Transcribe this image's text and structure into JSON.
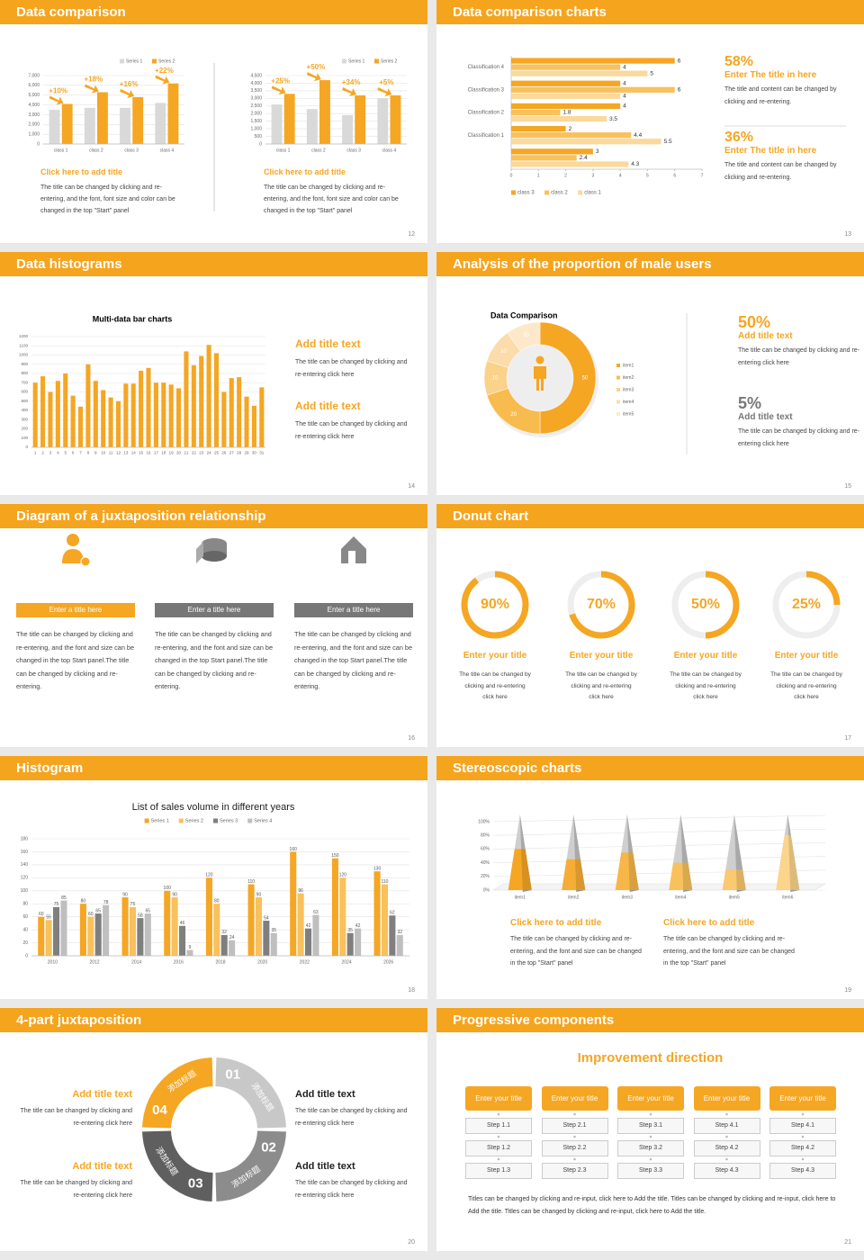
{
  "slides": [
    {
      "title": "Data comparison",
      "page": "12",
      "blocks": [
        {
          "chart": {
            "type": "bar",
            "categories": [
              "class 1",
              "class 2",
              "class 3",
              "class 4"
            ],
            "series": [
              {
                "name": "Series 1",
                "color": "#d9d9d9",
                "values": [
                  3500,
                  3700,
                  3700,
                  4200
                ]
              },
              {
                "name": "Series 2",
                "color": "#f5a623",
                "values": [
                  4100,
                  5300,
                  4800,
                  6200
                ]
              }
            ],
            "annotations": [
              "+10%",
              "+18%",
              "+16%",
              "+22%"
            ],
            "ylim": [
              0,
              7000
            ],
            "yticks": [
              0,
              {
                "value": 1000,
                "label": "1,000"
              },
              {
                "value": 2000,
                "label": "2,000"
              },
              {
                "value": 3000,
                "label": "3,000"
              },
              {
                "value": 4000,
                "label": "4,000"
              },
              {
                "value": 5000,
                "label": "5,000"
              },
              {
                "value": 6000,
                "label": "6,000"
              },
              {
                "value": 7000,
                "label": "7,000"
              }
            ],
            "legend": "top-right"
          },
          "heading": "Click here to add title",
          "text": "The title can be changed by clicking and re-entering, and the font, font size and color can be changed in the top \"Start\" panel"
        },
        {
          "chart": {
            "type": "bar",
            "categories": [
              "class 1",
              "class 2",
              "class 3",
              "class 4"
            ],
            "series": [
              {
                "name": "Series 1",
                "color": "#d9d9d9",
                "values": [
                  2600,
                  2300,
                  1900,
                  3000
                ]
              },
              {
                "name": "Series 2",
                "color": "#f5a623",
                "values": [
                  3300,
                  4200,
                  3200,
                  3200
                ]
              }
            ],
            "annotations": [
              "+25%",
              "+50%",
              "+34%",
              "+5%"
            ],
            "ylim": [
              0,
              4500
            ],
            "yticks": [
              0,
              500,
              {
                "value": 1000,
                "label": "1,000"
              },
              {
                "value": 1500,
                "label": "1,500"
              },
              {
                "value": 2000,
                "label": "2,000"
              },
              {
                "value": 2500,
                "label": "2,500"
              },
              {
                "value": 3000,
                "label": "3,000"
              },
              {
                "value": 3500,
                "label": "3,500"
              },
              {
                "value": 4000,
                "label": "4,000"
              },
              {
                "value": 4500,
                "label": "4,500"
              }
            ],
            "legend": "top-right"
          },
          "heading": "Click here to add title",
          "text": "The title can be changed by clicking and re-entering, and the font, font size and color can be changed in the top \"Start\" panel"
        }
      ]
    },
    {
      "title": "Data comparison charts",
      "page": "13",
      "chart": {
        "type": "hbar",
        "categories": [
          "Classification 4",
          "Classification 3",
          "Classification 2",
          "Classification 1",
          null
        ],
        "series": [
          {
            "name": "class 3",
            "color": "#f5a623",
            "values": [
              6,
              4,
              4,
              2,
              3
            ]
          },
          {
            "name": "class 2",
            "color": "#f8c15c",
            "values": [
              4,
              6,
              1.8,
              4.4,
              2.4
            ]
          },
          {
            "name": "class 1",
            "color": "#fbd99b",
            "values": [
              5,
              4,
              3.5,
              5.5,
              4.3
            ]
          }
        ],
        "xlim": [
          0,
          7
        ],
        "xticks": [
          0,
          1,
          2,
          3,
          4,
          5,
          6,
          7
        ],
        "legend": "bottom"
      },
      "stats": [
        {
          "value": "58%",
          "heading": "Enter The title in here",
          "text": "The title and content can be changed by clicking and re-entering."
        },
        {
          "value": "36%",
          "heading": "Enter The title in here",
          "text": "The title and content can be changed by clicking and re-entering."
        }
      ]
    },
    {
      "title": "Data histograms",
      "page": "14",
      "chart": {
        "type": "bar",
        "title": "Multi-data bar charts",
        "categories": [
          "1",
          "2",
          "3",
          "4",
          "5",
          "6",
          "7",
          "8",
          "9",
          "10",
          "11",
          "12",
          "13",
          "14",
          "15",
          "16",
          "17",
          "18",
          "19",
          "20",
          "21",
          "22",
          "23",
          "24",
          "25",
          "26",
          "27",
          "28",
          "29",
          "30",
          "31"
        ],
        "values": [
          700,
          770,
          600,
          720,
          800,
          560,
          440,
          900,
          720,
          620,
          540,
          500,
          690,
          690,
          830,
          860,
          700,
          700,
          680,
          640,
          1040,
          890,
          990,
          1110,
          1020,
          600,
          750,
          760,
          550,
          450,
          650
        ],
        "color": "#f5a623",
        "ylim": [
          0,
          1200
        ],
        "yticks": [
          0,
          100,
          200,
          300,
          400,
          500,
          600,
          700,
          800,
          900,
          1000,
          1100,
          1200
        ]
      },
      "blocks": [
        {
          "heading": "Add title text",
          "text": "The title can be changed by clicking and re-entering click here"
        },
        {
          "heading": "Add title text",
          "text": "The title can be changed by clicking and re-entering click here"
        }
      ]
    },
    {
      "title": "Analysis of the proportion of male users",
      "page": "15",
      "chart": {
        "type": "donut",
        "title": "Data Comparison",
        "categories": [
          "item1",
          "item2",
          "item3",
          "item4",
          "item5"
        ],
        "values": [
          50,
          20,
          10,
          10,
          10
        ],
        "colors": [
          "#f5a623",
          "#f8bb4d",
          "#fad28a",
          "#fbdcaa",
          "#fde9c9"
        ]
      },
      "stats": [
        {
          "value": "50%",
          "heading": "Add title text",
          "text": "The title can be changed by clicking and re-entering click here"
        },
        {
          "value": "5%",
          "heading": "Add title text",
          "text": "The title can be changed by clicking and re-entering click here"
        }
      ]
    },
    {
      "title": "Diagram of a juxtaposition relationship",
      "page": "16",
      "columns": [
        {
          "heading": "Enter a title here",
          "text": "The title can be changed by clicking and re-entering, and the font and size can be changed in the top Start panel.The title can be changed by clicking and re-entering."
        },
        {
          "heading": "Enter a title here",
          "text": "The title can be changed by clicking and re-entering, and the font and size can be changed in the top Start panel.The title can be changed by clicking and re-entering."
        },
        {
          "heading": "Enter a title here",
          "text": "The title can be changed by clicking and re-entering, and the font and size can be changed in the top Start panel.The title can be changed by clicking and re-entering."
        }
      ]
    },
    {
      "title": "Donut chart",
      "page": "17",
      "chart": {
        "type": "ring",
        "values": [
          90,
          70,
          50,
          25
        ],
        "value_labels": [
          "90%",
          "70%",
          "50%",
          "25%"
        ],
        "ylim": [
          0,
          100
        ],
        "color": "#f5a623"
      },
      "columns": [
        {
          "heading": "Enter your title",
          "text": "The title can be changed by clicking and re-entering click here"
        },
        {
          "heading": "Enter your title",
          "text": "The title can be changed by clicking and re-entering click here"
        },
        {
          "heading": "Enter your title",
          "text": "The title can be changed by clicking and re-entering click here"
        },
        {
          "heading": "Enter your title",
          "text": "The title can be changed by clicking and re-entering click here"
        }
      ]
    },
    {
      "title": "Histogram",
      "page": "18",
      "chart": {
        "type": "bar",
        "title": "List of sales volume in different years",
        "categories": [
          "2010",
          "2012",
          "2014",
          "2016",
          "2018",
          "2020",
          "2022",
          "2024",
          "2026"
        ],
        "series": [
          {
            "name": "Series 1",
            "color": "#f5a623",
            "values": [
              60,
              80,
              90,
              100,
              120,
              110,
              160,
              150,
              130
            ]
          },
          {
            "name": "Series 2",
            "color": "#f8c15c",
            "values": [
              55,
              60,
              75,
              90,
              80,
              90,
              96,
              120,
              110
            ]
          },
          {
            "name": "Series 3",
            "color": "#7f7f7f",
            "values": [
              75,
              65,
              58,
              46,
              32,
              54,
              42,
              35,
              62
            ]
          },
          {
            "name": "Series 4",
            "color": "#bfbfbf",
            "values": [
              85,
              78,
              65,
              9,
              24,
              35,
              63,
              42,
              32
            ]
          }
        ],
        "ylim": [
          0,
          180
        ],
        "yticks": [
          0,
          20,
          40,
          60,
          80,
          100,
          120,
          140,
          160,
          180
        ],
        "legend": "top"
      }
    },
    {
      "title": "Stereoscopic charts",
      "page": "19",
      "chart": {
        "type": "cone",
        "categories": [
          "item1",
          "item2",
          "item3",
          "item4",
          "item5",
          "item6"
        ],
        "values": [
          60,
          45,
          55,
          40,
          30,
          80
        ],
        "colors": [
          "#f5a623",
          "#f6ad35",
          "#f7b748",
          "#f8c15c",
          "#fac970",
          "#fbd58b"
        ],
        "ylim": [
          0,
          100
        ],
        "yticks": [
          {
            "value": 0,
            "label": "0%"
          },
          {
            "value": 20,
            "label": "20%"
          },
          {
            "value": 40,
            "label": "40%"
          },
          {
            "value": 60,
            "label": "60%"
          },
          {
            "value": 80,
            "label": "80%"
          },
          {
            "value": 100,
            "label": "100%"
          }
        ]
      },
      "blocks": [
        {
          "heading": "Click here to add title",
          "text": "The title can be changed by clicking and re-entering, and the font and size can be changed in the top \"Start\" panel"
        },
        {
          "heading": "Click here to add title",
          "text": "The title can be changed by clicking and re-entering, and the font and size can be changed in the top \"Start\" panel"
        }
      ]
    },
    {
      "title": "4-part juxtaposition",
      "page": "20",
      "parts": [
        {
          "number": "01",
          "label": "添加标题"
        },
        {
          "number": "02",
          "label": "添加标题"
        },
        {
          "number": "03",
          "label": "添加标题"
        },
        {
          "number": "04",
          "label": "添加标题"
        }
      ],
      "blocks": [
        {
          "heading": "Add title text",
          "text": "The title can be changed by clicking and re-entering click here"
        },
        {
          "heading": "Add title text",
          "text": "The title can be changed by clicking and re-entering click here"
        },
        {
          "heading": "Add title text",
          "text": "The title can be changed by clicking and re-entering click here"
        },
        {
          "heading": "Add title text",
          "text": "The title can be changed by clicking and re-entering click here"
        }
      ]
    },
    {
      "title": "Progressive components",
      "page": "21",
      "heading": "Improvement direction",
      "columns": [
        {
          "title": "Enter your title",
          "steps": [
            "Step 1.1",
            "Step 1.2",
            "Step 1.3"
          ]
        },
        {
          "title": "Enter your title",
          "steps": [
            "Step 2.1",
            "Step 2.2",
            "Step 2.3"
          ]
        },
        {
          "title": "Enter your title",
          "steps": [
            "Step 3.1",
            "Step 3.2",
            "Step 3.3"
          ]
        },
        {
          "title": "Enter your title",
          "steps": [
            "Step 4.1",
            "Step 4.2",
            "Step 4.3"
          ]
        },
        {
          "title": "Enter your title",
          "steps": [
            "Step 4.1",
            "Step 4.2",
            "Step 4.3"
          ]
        }
      ],
      "text": "Titles can be changed by clicking and re-input, click here to Add the title. Titles can be changed by clicking and re-input, click here to Add the title. Titles can be changed by clicking and re-input, click here to Add the title."
    }
  ]
}
